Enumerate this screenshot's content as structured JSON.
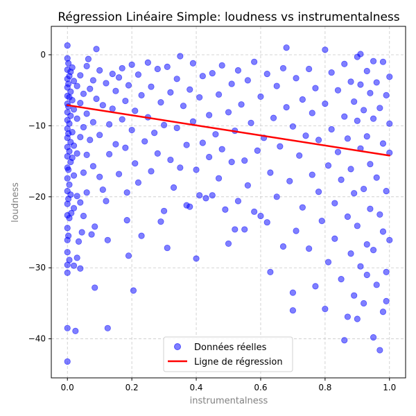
{
  "chart_data": {
    "type": "scatter",
    "title": "Régression Linéaire Simple: loudness vs instrumentalness",
    "xlabel": "instrumentalness",
    "ylabel": "loudness",
    "xlim": [
      -0.05,
      1.05
    ],
    "ylim": [
      -45.5,
      4
    ],
    "xticks": [
      0.0,
      0.2,
      0.4,
      0.6,
      0.8,
      1.0
    ],
    "xtick_labels": [
      "0.0",
      "0.2",
      "0.4",
      "0.6",
      "0.8",
      "1.0"
    ],
    "yticks": [
      0,
      -10,
      -20,
      -30,
      -40
    ],
    "ytick_labels": [
      "0",
      "−10",
      "−20",
      "−30",
      "−40"
    ],
    "grid": true,
    "legend": {
      "placement": "bottom-center",
      "entries": [
        {
          "label": "Données réelles",
          "marker": "circle",
          "color": "#0000ff"
        },
        {
          "label": "Ligne de régression",
          "marker": "line",
          "color": "#ff0000"
        }
      ]
    },
    "series": [
      {
        "name": "Données réelles",
        "kind": "scatter",
        "color": "#0000ff",
        "opacity": 0.5,
        "points": [
          [
            0.0,
            1.3
          ],
          [
            0.0,
            -0.5
          ],
          [
            0.0,
            -2.1
          ],
          [
            0.0,
            -3.4
          ],
          [
            0.0,
            -4.6
          ],
          [
            0.0,
            -5.8
          ],
          [
            0.0,
            -6.9
          ],
          [
            0.0,
            -8.1
          ],
          [
            0.0,
            -9.2
          ],
          [
            0.0,
            -10.4
          ],
          [
            0.0,
            -11.7
          ],
          [
            0.0,
            -13.0
          ],
          [
            0.0,
            -14.3
          ],
          [
            0.0,
            -15.9
          ],
          [
            0.0,
            -17.4
          ],
          [
            0.0,
            -19.2
          ],
          [
            0.0,
            -21.0
          ],
          [
            0.0,
            -22.6
          ],
          [
            0.0,
            -24.4
          ],
          [
            0.0,
            -26.1
          ],
          [
            0.0,
            -27.8
          ],
          [
            0.0,
            -29.6
          ],
          [
            0.0,
            -30.7
          ],
          [
            0.0,
            -38.5
          ],
          [
            0.0,
            -43.2
          ],
          [
            0.003,
            -1.2
          ],
          [
            0.003,
            -4.1
          ],
          [
            0.003,
            -7.3
          ],
          [
            0.003,
            -11.1
          ],
          [
            0.003,
            -16.2
          ],
          [
            0.003,
            -20.3
          ],
          [
            0.003,
            -25.5
          ],
          [
            0.006,
            -3.0
          ],
          [
            0.006,
            -6.0
          ],
          [
            0.006,
            -9.7
          ],
          [
            0.006,
            -13.6
          ],
          [
            0.006,
            -18.3
          ],
          [
            0.006,
            -23.0
          ],
          [
            0.006,
            -28.9
          ],
          [
            0.01,
            -2.4
          ],
          [
            0.01,
            -5.2
          ],
          [
            0.01,
            -8.6
          ],
          [
            0.01,
            -12.3
          ],
          [
            0.01,
            -15.1
          ],
          [
            0.01,
            -19.7
          ],
          [
            0.012,
            -22.3
          ],
          [
            0.015,
            -1.8
          ],
          [
            0.015,
            -6.4
          ],
          [
            0.015,
            -10.9
          ],
          [
            0.015,
            -14.5
          ],
          [
            0.02,
            -3.7
          ],
          [
            0.02,
            -7.7
          ],
          [
            0.02,
            -12.8
          ],
          [
            0.02,
            -17.0
          ],
          [
            0.02,
            -21.6
          ],
          [
            0.02,
            -29.7
          ],
          [
            0.025,
            -38.9
          ],
          [
            0.03,
            -4.4
          ],
          [
            0.03,
            -9.0
          ],
          [
            0.03,
            -13.9
          ],
          [
            0.03,
            -19.9
          ],
          [
            0.03,
            -28.6
          ],
          [
            0.035,
            -26.3
          ],
          [
            0.04,
            -2.9
          ],
          [
            0.04,
            -6.8
          ],
          [
            0.04,
            -11.6
          ],
          [
            0.04,
            -20.8
          ],
          [
            0.04,
            -30.1
          ],
          [
            0.045,
            -25.0
          ],
          [
            0.05,
            -5.5
          ],
          [
            0.05,
            -10.2
          ],
          [
            0.05,
            -16.6
          ],
          [
            0.05,
            -22.7
          ],
          [
            0.06,
            -1.6
          ],
          [
            0.06,
            -8.3
          ],
          [
            0.06,
            -14.1
          ],
          [
            0.06,
            -19.4
          ],
          [
            0.065,
            -0.6
          ],
          [
            0.07,
            -4.8
          ],
          [
            0.07,
            -12.0
          ],
          [
            0.075,
            -25.3
          ],
          [
            0.08,
            -3.6
          ],
          [
            0.08,
            -9.5
          ],
          [
            0.08,
            -15.7
          ],
          [
            0.085,
            -32.8
          ],
          [
            0.085,
            -24.2
          ],
          [
            0.09,
            0.8
          ],
          [
            0.09,
            -6.2
          ],
          [
            0.1,
            -2.2
          ],
          [
            0.1,
            -11.3
          ],
          [
            0.1,
            -17.2
          ],
          [
            0.11,
            -7.1
          ],
          [
            0.11,
            -19.0
          ],
          [
            0.12,
            -4.0
          ],
          [
            0.12,
            -20.6
          ],
          [
            0.125,
            -26.1
          ],
          [
            0.125,
            -38.5
          ],
          [
            0.13,
            -9.8
          ],
          [
            0.13,
            -14.0
          ],
          [
            0.14,
            -2.7
          ],
          [
            0.14,
            -7.6
          ],
          [
            0.15,
            -5.1
          ],
          [
            0.15,
            -12.6
          ],
          [
            0.16,
            -16.8
          ],
          [
            0.16,
            -3.2
          ],
          [
            0.17,
            -9.1
          ],
          [
            0.17,
            -1.9
          ],
          [
            0.18,
            -6.5
          ],
          [
            0.18,
            -13.1
          ],
          [
            0.185,
            -19.4
          ],
          [
            0.185,
            -23.3
          ],
          [
            0.19,
            -4.3
          ],
          [
            0.19,
            -28.3
          ],
          [
            0.2,
            -10.6
          ],
          [
            0.2,
            -1.4
          ],
          [
            0.205,
            -33.2
          ],
          [
            0.21,
            -7.9
          ],
          [
            0.21,
            -15.3
          ],
          [
            0.22,
            -2.8
          ],
          [
            0.22,
            -18.0
          ],
          [
            0.23,
            -25.5
          ],
          [
            0.23,
            -5.7
          ],
          [
            0.24,
            -12.2
          ],
          [
            0.25,
            -1.1
          ],
          [
            0.25,
            -8.8
          ],
          [
            0.26,
            -16.4
          ],
          [
            0.26,
            -4.5
          ],
          [
            0.27,
            -11.0
          ],
          [
            0.28,
            -2.0
          ],
          [
            0.28,
            -13.9
          ],
          [
            0.29,
            -23.5
          ],
          [
            0.29,
            -6.7
          ],
          [
            0.3,
            -22.0
          ],
          [
            0.3,
            -9.9
          ],
          [
            0.31,
            -27.2
          ],
          [
            0.31,
            -1.7
          ],
          [
            0.32,
            -14.8
          ],
          [
            0.32,
            -5.3
          ],
          [
            0.33,
            -18.7
          ],
          [
            0.34,
            -10.3
          ],
          [
            0.34,
            -3.4
          ],
          [
            0.35,
            -0.2
          ],
          [
            0.35,
            -15.9
          ],
          [
            0.36,
            -7.2
          ],
          [
            0.37,
            -21.2
          ],
          [
            0.37,
            -12.7
          ],
          [
            0.38,
            -4.9
          ],
          [
            0.38,
            -21.4
          ],
          [
            0.39,
            -1.2
          ],
          [
            0.39,
            -9.4
          ],
          [
            0.4,
            -28.7
          ],
          [
            0.4,
            -16.2
          ],
          [
            0.41,
            -6.0
          ],
          [
            0.41,
            -19.8
          ],
          [
            0.42,
            -12.4
          ],
          [
            0.42,
            -3.0
          ],
          [
            0.43,
            -20.2
          ],
          [
            0.44,
            -8.5
          ],
          [
            0.44,
            -14.4
          ],
          [
            0.45,
            -2.6
          ],
          [
            0.45,
            -19.8
          ],
          [
            0.46,
            -11.2
          ],
          [
            0.47,
            -5.6
          ],
          [
            0.47,
            -17.4
          ],
          [
            0.48,
            -1.5
          ],
          [
            0.48,
            -13.3
          ],
          [
            0.49,
            -21.8
          ],
          [
            0.5,
            -8.1
          ],
          [
            0.5,
            -26.6
          ],
          [
            0.51,
            -4.1
          ],
          [
            0.51,
            -15.1
          ],
          [
            0.52,
            -24.6
          ],
          [
            0.52,
            -10.7
          ],
          [
            0.53,
            -2.2
          ],
          [
            0.53,
            -20.6
          ],
          [
            0.54,
            -7.0
          ],
          [
            0.55,
            -24.6
          ],
          [
            0.55,
            -14.9
          ],
          [
            0.56,
            -3.6
          ],
          [
            0.56,
            -18.4
          ],
          [
            0.57,
            -9.6
          ],
          [
            0.58,
            -1.0
          ],
          [
            0.58,
            -22.1
          ],
          [
            0.59,
            -13.5
          ],
          [
            0.6,
            -5.9
          ],
          [
            0.6,
            -22.7
          ],
          [
            0.61,
            -11.7
          ],
          [
            0.62,
            -23.6
          ],
          [
            0.62,
            -2.7
          ],
          [
            0.63,
            -16.6
          ],
          [
            0.63,
            -30.6
          ],
          [
            0.64,
            -8.9
          ],
          [
            0.65,
            -4.4
          ],
          [
            0.65,
            -20.0
          ],
          [
            0.66,
            -12.9
          ],
          [
            0.67,
            -27.0
          ],
          [
            0.67,
            -1.9
          ],
          [
            0.68,
            1.0
          ],
          [
            0.68,
            -7.4
          ],
          [
            0.69,
            -17.8
          ],
          [
            0.7,
            -33.5
          ],
          [
            0.7,
            -10.1
          ],
          [
            0.7,
            -36.0
          ],
          [
            0.71,
            -3.3
          ],
          [
            0.71,
            -24.8
          ],
          [
            0.72,
            -14.2
          ],
          [
            0.73,
            -6.3
          ],
          [
            0.73,
            -21.5
          ],
          [
            0.74,
            -11.4
          ],
          [
            0.75,
            -2.0
          ],
          [
            0.75,
            -27.3
          ],
          [
            0.76,
            -16.9
          ],
          [
            0.76,
            -8.2
          ],
          [
            0.77,
            -32.6
          ],
          [
            0.77,
            -4.7
          ],
          [
            0.78,
            -19.3
          ],
          [
            0.78,
            -12.0
          ],
          [
            0.79,
            -23.4
          ],
          [
            0.8,
            0.7
          ],
          [
            0.8,
            -6.9
          ],
          [
            0.8,
            -35.8
          ],
          [
            0.81,
            -15.6
          ],
          [
            0.81,
            -29.2
          ],
          [
            0.82,
            -2.5
          ],
          [
            0.82,
            -10.5
          ],
          [
            0.83,
            -20.9
          ],
          [
            0.83,
            -25.9
          ],
          [
            0.84,
            -5.0
          ],
          [
            0.84,
            -13.7
          ],
          [
            0.85,
            -31.6
          ],
          [
            0.85,
            -17.6
          ],
          [
            0.86,
            -1.3
          ],
          [
            0.86,
            -8.7
          ],
          [
            0.86,
            -40.2
          ],
          [
            0.87,
            -22.8
          ],
          [
            0.87,
            -11.8
          ],
          [
            0.87,
            -36.9
          ],
          [
            0.88,
            -3.8
          ],
          [
            0.88,
            -16.1
          ],
          [
            0.88,
            -28.0
          ],
          [
            0.89,
            -6.6
          ],
          [
            0.89,
            -19.5
          ],
          [
            0.89,
            -33.9
          ],
          [
            0.9,
            -0.3
          ],
          [
            0.9,
            -9.3
          ],
          [
            0.9,
            -24.1
          ],
          [
            0.9,
            -37.2
          ],
          [
            0.91,
            -4.2
          ],
          [
            0.91,
            -13.2
          ],
          [
            0.91,
            -29.8
          ],
          [
            0.91,
            0.1
          ],
          [
            0.92,
            -7.8
          ],
          [
            0.92,
            -18.9
          ],
          [
            0.92,
            -35.0
          ],
          [
            0.93,
            -2.3
          ],
          [
            0.93,
            -11.5
          ],
          [
            0.93,
            -26.7
          ],
          [
            0.93,
            -31.0
          ],
          [
            0.94,
            -5.4
          ],
          [
            0.94,
            -15.4
          ],
          [
            0.94,
            -21.7
          ],
          [
            0.95,
            -0.9
          ],
          [
            0.95,
            -9.0
          ],
          [
            0.95,
            -39.8
          ],
          [
            0.95,
            -27.5
          ],
          [
            0.96,
            -3.9
          ],
          [
            0.96,
            -17.3
          ],
          [
            0.96,
            -32.4
          ],
          [
            0.97,
            -7.5
          ],
          [
            0.97,
            -22.5
          ],
          [
            0.97,
            -41.6
          ],
          [
            0.98,
            -1.0
          ],
          [
            0.98,
            -12.5
          ],
          [
            0.98,
            -36.2
          ],
          [
            0.98,
            -24.9
          ],
          [
            0.99,
            -5.7
          ],
          [
            0.99,
            -19.2
          ],
          [
            0.99,
            -30.6
          ],
          [
            0.99,
            -34.7
          ],
          [
            1.0,
            -9.7
          ],
          [
            1.0,
            -13.8
          ],
          [
            1.0,
            -26.1
          ],
          [
            1.0,
            -3.1
          ]
        ]
      },
      {
        "name": "Ligne de régression",
        "kind": "line",
        "color": "#ff0000",
        "x": [
          0.0,
          1.0
        ],
        "y": [
          -7.1,
          -14.2
        ]
      }
    ]
  }
}
